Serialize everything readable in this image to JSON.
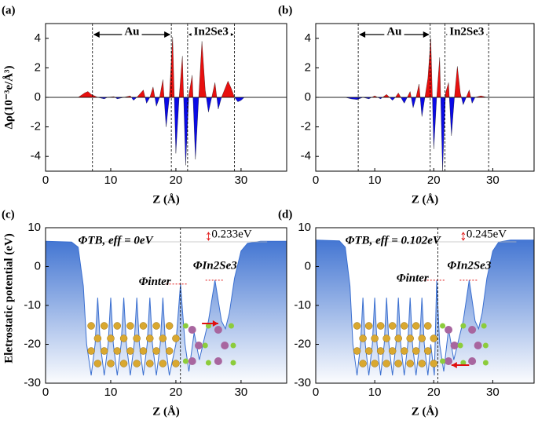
{
  "chart_data": [
    {
      "type": "charge",
      "panel": "(a)",
      "xlabel": "Z (Å)",
      "ylabel": "Δρ(10⁻³e/Å³)",
      "xlim": [
        0,
        37
      ],
      "ylim": [
        -5,
        5
      ],
      "xticks": [
        0,
        10,
        20,
        30
      ],
      "yticks": [
        -4,
        -2,
        0,
        2,
        4
      ],
      "dashed_lines": [
        7.2,
        19.3,
        21.8,
        29
      ],
      "regions": [
        "Au",
        "In2Se3"
      ],
      "pos_color": "#e8100f",
      "neg_color": "#0a0ae6",
      "x": [
        0,
        5,
        6,
        6.5,
        7,
        8,
        9,
        9.5,
        10.5,
        11,
        12,
        13,
        13.5,
        14,
        15,
        15.5,
        16,
        16.5,
        17,
        17.5,
        18,
        18.5,
        19,
        19.5,
        20,
        20.5,
        21,
        21.5,
        22,
        22.5,
        23,
        23.5,
        24,
        24.5,
        25,
        25.5,
        26,
        26.5,
        27,
        28,
        28.5,
        29,
        29.5,
        30,
        30.5,
        37
      ],
      "values": [
        0,
        0,
        0.3,
        0.4,
        0.2,
        0,
        -0.1,
        0,
        0.05,
        -0.1,
        0,
        0.1,
        -0.2,
        0,
        0.5,
        -0.4,
        0,
        0.7,
        -0.6,
        0,
        1.2,
        -2,
        0,
        4.1,
        -3.8,
        0,
        2.8,
        -4.6,
        0.2,
        1.5,
        -4.2,
        0,
        3.8,
        0.5,
        -1,
        0,
        1,
        -0.8,
        0,
        1.1,
        0.6,
        0,
        -0.3,
        -0.2,
        0,
        0
      ]
    },
    {
      "type": "charge",
      "panel": "(b)",
      "xlabel": "Z (Å)",
      "xlim": [
        0,
        37
      ],
      "ylim": [
        -5,
        5
      ],
      "xticks": [
        0,
        10,
        20,
        30
      ],
      "yticks": [
        -4,
        -2,
        0,
        2,
        4
      ],
      "dashed_lines": [
        7.2,
        19.4,
        21.9,
        29.3
      ],
      "regions": [
        "Au",
        "In2Se3"
      ],
      "pos_color": "#e8100f",
      "neg_color": "#0a0ae6",
      "x": [
        0,
        5,
        6,
        7,
        8,
        9,
        10,
        11,
        12,
        13,
        13.5,
        14,
        15,
        15.5,
        16,
        16.5,
        17,
        17.5,
        18,
        18.5,
        19,
        19.5,
        20,
        20.5,
        21,
        21.5,
        22,
        22.5,
        23,
        23.5,
        24,
        24.5,
        25,
        25.5,
        26,
        26.5,
        27,
        28,
        29,
        37
      ],
      "values": [
        0,
        0,
        -0.1,
        -0.15,
        0,
        -0.1,
        0.1,
        -0.1,
        0.2,
        -0.2,
        0,
        0.3,
        -0.4,
        0,
        0.4,
        -0.7,
        0,
        0.9,
        -1.3,
        0,
        1.3,
        4,
        -3.5,
        0,
        2.7,
        -5,
        0.3,
        1,
        -2.6,
        0,
        2.1,
        0.3,
        -0.5,
        0,
        0.5,
        -0.4,
        0,
        0.1,
        0,
        0
      ]
    },
    {
      "type": "potential",
      "panel": "(c)",
      "xlabel": "Z (Å)",
      "ylabel": "Eletrostatic potential (eV)",
      "xlim": [
        0,
        37
      ],
      "ylim": [
        -30,
        10
      ],
      "xticks": [
        0,
        10,
        20,
        30
      ],
      "yticks": [
        -30,
        -20,
        -10,
        0,
        10
      ],
      "dashed_lines": [
        20.7
      ],
      "color": "#3a6fd0",
      "annotations": [
        "ΦTB, eff = 0eV",
        "Φinter",
        "ΦIn2Se3",
        "0.233eV"
      ],
      "x": [
        0,
        4,
        5,
        5.8,
        6.3,
        7,
        7.6,
        8,
        8.4,
        9,
        9.6,
        10,
        10.4,
        11,
        11.6,
        12,
        12.4,
        13,
        13.6,
        14,
        14.4,
        15,
        15.6,
        16,
        16.4,
        17,
        17.6,
        18,
        18.4,
        19,
        20,
        20.7,
        21.4,
        22,
        22.8,
        23.6,
        25,
        26,
        27,
        27.6,
        28.2,
        29,
        30,
        31,
        33,
        37
      ],
      "values": [
        6.5,
        6.3,
        5,
        -5,
        -20,
        -28,
        -20,
        -8,
        -20,
        -28,
        -20,
        -8,
        -20,
        -28,
        -20,
        -8,
        -20,
        -28,
        -20,
        -8,
        -20,
        -28,
        -20,
        -8,
        -20,
        -28,
        -20,
        -8,
        -20,
        -28,
        -20,
        -4.5,
        -20,
        -27,
        -17,
        -24,
        -14,
        -3.5,
        -14,
        -16,
        -12,
        -3,
        4,
        6,
        6.5,
        6.5
      ]
    },
    {
      "type": "potential",
      "panel": "(d)",
      "xlabel": "Z (Å)",
      "xlim": [
        0,
        37
      ],
      "ylim": [
        -30,
        10
      ],
      "xticks": [
        0,
        10,
        20,
        30
      ],
      "yticks": [
        -30,
        -20,
        -10,
        0,
        10
      ],
      "dashed_lines": [
        20.7
      ],
      "color": "#3a6fd0",
      "annotations": [
        "ΦTB, eff = 0.102eV",
        "Φinter",
        "ΦIn2Se3",
        "0.245eV"
      ],
      "x": [
        0,
        4,
        5,
        5.8,
        6.3,
        7,
        7.6,
        8,
        8.4,
        9,
        9.6,
        10,
        10.4,
        11,
        11.6,
        12,
        12.4,
        13,
        13.6,
        14,
        14.4,
        15,
        15.6,
        16,
        16.4,
        17,
        17.6,
        18,
        18.4,
        19,
        19.5,
        20.1,
        20.5,
        21,
        21.7,
        22.5,
        23.4,
        25,
        26,
        27,
        27.6,
        28.2,
        29,
        30,
        31,
        33,
        37
      ],
      "values": [
        6.8,
        6.6,
        5,
        -5,
        -20,
        -28,
        -20,
        -8,
        -20,
        -28,
        -20,
        -8,
        -20,
        -28,
        -20,
        -8,
        -20,
        -28,
        -20,
        -8,
        -20,
        -28,
        -20,
        -8,
        -20,
        -28,
        -20,
        -8,
        -20,
        -28,
        -20,
        -28,
        -3.5,
        -20,
        -27,
        -16,
        -24,
        -14,
        -3.5,
        -14,
        -16,
        -12,
        -3,
        4,
        6.3,
        6.8,
        6.8
      ]
    }
  ]
}
